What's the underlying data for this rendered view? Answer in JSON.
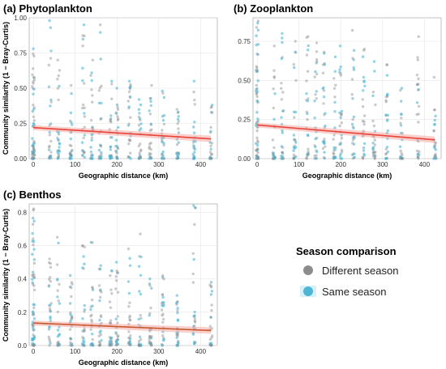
{
  "legend": {
    "title": "Season comparison",
    "items": [
      {
        "label": "Different season",
        "color": "#8c8c8c"
      },
      {
        "label": "Same season",
        "color": "#4db6d6"
      }
    ]
  },
  "chart_data": [
    {
      "type": "scatter",
      "title": "(a) Phytoplankton",
      "xlabel": "Geographic distance (km)",
      "ylabel": "Community similarity (1 − Bray-Curtis)",
      "xlim": [
        -10,
        440
      ],
      "ylim": [
        0,
        1.0
      ],
      "xticks": [
        0,
        100,
        200,
        300,
        400
      ],
      "yticks": [
        0,
        0.25,
        0.5,
        0.75,
        1.0
      ],
      "ytick_labels": [
        "0.00",
        "0.25",
        "0.50",
        "0.75",
        "1.00"
      ],
      "x_groups": [
        0,
        40,
        60,
        90,
        120,
        140,
        160,
        185,
        200,
        230,
        255,
        280,
        310,
        345,
        385,
        425
      ],
      "max_similarity": [
        0.78,
        0.98,
        0.7,
        0.52,
        0.95,
        0.7,
        0.95,
        0.55,
        0.5,
        0.55,
        0.42,
        0.52,
        0.48,
        0.35,
        0.55,
        0.38
      ],
      "trend": {
        "x": [
          0,
          425
        ],
        "y": [
          0.22,
          0.14
        ],
        "color": "#e8443a"
      },
      "grid": true,
      "series": [
        {
          "name": "Different season",
          "color": "#8c8c8c"
        },
        {
          "name": "Same season",
          "color": "#4db6d6"
        }
      ]
    },
    {
      "type": "scatter",
      "title": "(b) Zooplankton",
      "xlabel": "Geographic distance (km)",
      "ylabel": "",
      "xlim": [
        -10,
        440
      ],
      "ylim": [
        0,
        0.9
      ],
      "xticks": [
        0,
        100,
        200,
        300,
        400
      ],
      "yticks": [
        0,
        0.25,
        0.5,
        0.75
      ],
      "ytick_labels": [
        "0.00",
        "0.25",
        "0.50",
        "0.75"
      ],
      "x_groups": [
        0,
        40,
        60,
        90,
        120,
        140,
        160,
        185,
        200,
        230,
        255,
        280,
        310,
        345,
        385,
        425
      ],
      "max_similarity": [
        0.88,
        0.72,
        0.8,
        0.75,
        0.78,
        0.74,
        0.68,
        0.65,
        0.72,
        0.82,
        0.7,
        0.62,
        0.6,
        0.45,
        0.78,
        0.52
      ],
      "trend": {
        "x": [
          0,
          425
        ],
        "y": [
          0.215,
          0.12
        ],
        "color": "#e8443a"
      },
      "grid": true,
      "series": [
        {
          "name": "Different season",
          "color": "#8c8c8c"
        },
        {
          "name": "Same season",
          "color": "#4db6d6"
        }
      ]
    },
    {
      "type": "scatter",
      "title": "(c) Benthos",
      "xlabel": "Geographic distance (km)",
      "ylabel": "Community similarity (1 − Bray-Curtis)",
      "xlim": [
        -10,
        440
      ],
      "ylim": [
        0,
        0.85
      ],
      "xticks": [
        0,
        100,
        200,
        300,
        400
      ],
      "yticks": [
        0,
        0.2,
        0.4,
        0.6,
        0.8
      ],
      "ytick_labels": [
        "0.0",
        "0.2",
        "0.4",
        "0.6",
        "0.8"
      ],
      "x_groups": [
        0,
        40,
        60,
        90,
        120,
        140,
        160,
        185,
        200,
        230,
        255,
        280,
        310,
        345,
        385,
        425
      ],
      "max_similarity": [
        0.82,
        0.52,
        0.65,
        0.42,
        0.6,
        0.62,
        0.48,
        0.45,
        0.5,
        0.58,
        0.67,
        0.4,
        0.42,
        0.3,
        0.84,
        0.38
      ],
      "trend": {
        "x": [
          0,
          425
        ],
        "y": [
          0.135,
          0.09
        ],
        "color": "#c8562e"
      },
      "grid": true,
      "series": [
        {
          "name": "Different season",
          "color": "#8c8c8c"
        },
        {
          "name": "Same season",
          "color": "#4db6d6"
        }
      ]
    }
  ]
}
